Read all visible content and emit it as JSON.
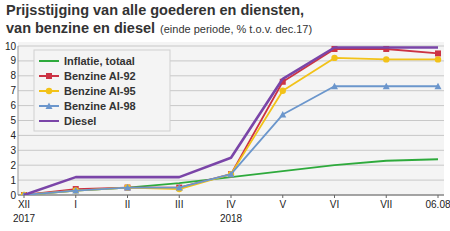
{
  "chart_data": {
    "type": "line",
    "title": "Prijsstijging van alle goederen en diensten,",
    "subtitle": "van benzine en diesel",
    "note": "(einde periode, % t.o.v. dec.17)",
    "categories": [
      "XII",
      "I",
      "II",
      "III",
      "IV",
      "V",
      "VI",
      "VII",
      "06.08"
    ],
    "annotations": [
      {
        "text": "2017",
        "category": "XII"
      },
      {
        "text": "2018",
        "category": "IV"
      }
    ],
    "series": [
      {
        "name": "Inflatie, totaal",
        "color": "#2eaa3c",
        "marker": "none",
        "values": [
          0,
          0.3,
          0.5,
          0.8,
          1.2,
          1.6,
          2.0,
          2.3,
          2.4
        ]
      },
      {
        "name": "Benzine AI-92",
        "color": "#cc3344",
        "marker": "square",
        "values": [
          0,
          0.4,
          0.5,
          0.5,
          1.4,
          7.6,
          9.8,
          9.8,
          9.5
        ]
      },
      {
        "name": "Benzine AI-95",
        "color": "#f2c218",
        "marker": "circle",
        "values": [
          0,
          0.3,
          0.5,
          0.4,
          1.4,
          7.0,
          9.2,
          9.1,
          9.1
        ]
      },
      {
        "name": "Benzine AI-98",
        "color": "#6b96cc",
        "marker": "triangle",
        "values": [
          0,
          0.3,
          0.5,
          0.5,
          1.4,
          5.4,
          7.3,
          7.3,
          7.3
        ]
      },
      {
        "name": "Diesel",
        "color": "#7a45a8",
        "marker": "none",
        "values": [
          0,
          1.2,
          1.2,
          1.2,
          2.5,
          7.8,
          9.9,
          9.9,
          9.9
        ]
      }
    ],
    "ylim": [
      0,
      10
    ],
    "yticks": [
      0,
      1,
      2,
      3,
      4,
      5,
      6,
      7,
      8,
      9,
      10
    ],
    "grid": true,
    "legend": "upper left"
  }
}
